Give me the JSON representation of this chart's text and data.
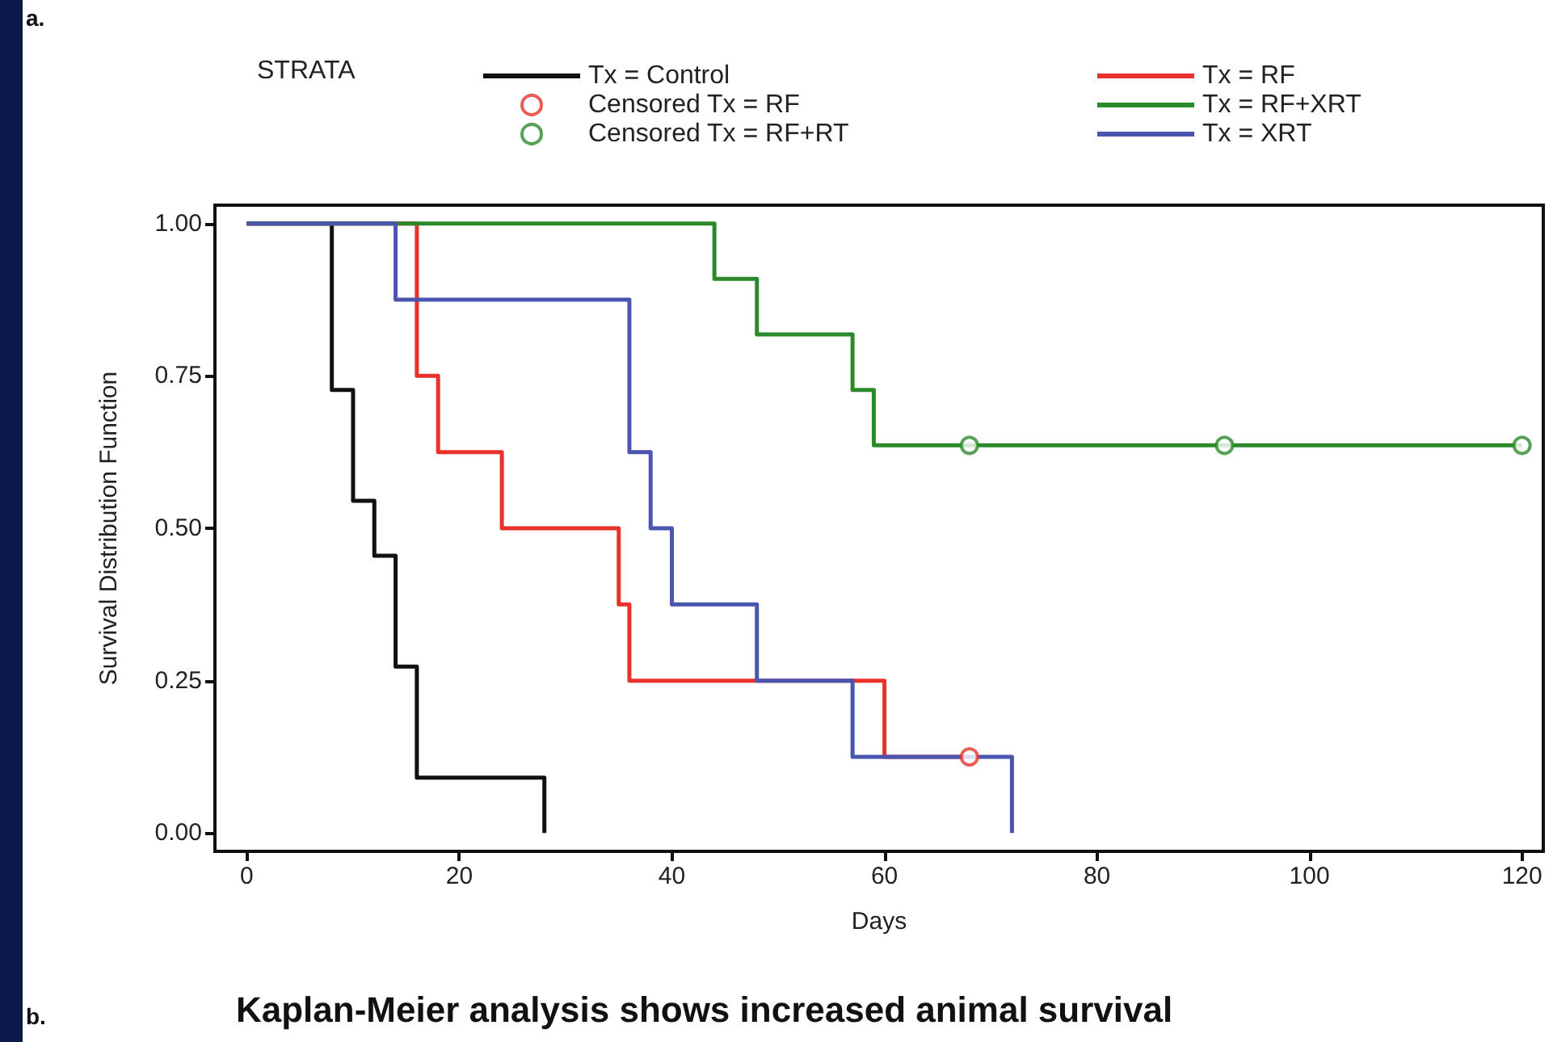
{
  "chart_data": {
    "type": "step",
    "xlabel": "Days",
    "ylabel": "Survival Distribution Function",
    "legend_title": "STRATA",
    "legend": "top",
    "grid": false,
    "annotations": [
      "a.",
      "b.",
      "Kaplan-Meier analysis shows increased animal survival"
    ],
    "xlim": [
      -3,
      122
    ],
    "xticks": [
      0,
      20,
      40,
      60,
      80,
      100,
      120
    ],
    "ylim": [
      -0.03,
      1.03
    ],
    "yticks": [
      {
        "value": 0,
        "label": "0.00"
      },
      {
        "value": 0.25,
        "label": "0.25"
      },
      {
        "value": 0.5,
        "label": "0.50"
      },
      {
        "value": 0.75,
        "label": "0.75"
      },
      {
        "value": 1,
        "label": "1.00"
      }
    ],
    "series": [
      {
        "name": "Tx = Control",
        "color": "#111111",
        "x": [
          0,
          8,
          10,
          12,
          14,
          16,
          28
        ],
        "values": [
          1,
          0.727,
          0.545,
          0.455,
          0.273,
          0.091,
          0
        ]
      },
      {
        "name": "Tx = RF",
        "color": "#e8322b",
        "x": [
          0,
          16,
          18,
          24,
          35,
          36,
          60,
          68
        ],
        "values": [
          1,
          0.75,
          0.625,
          0.5,
          0.375,
          0.25,
          0.125,
          0.125
        ]
      },
      {
        "name": "Censored Tx = RF",
        "type": "scatter",
        "marker": "circle",
        "color": "#e8322b",
        "x": [
          68
        ],
        "values": [
          0.125
        ]
      },
      {
        "name": "Tx = RF+XRT",
        "color": "#2a8a2a",
        "x": [
          0,
          44,
          48,
          57,
          59,
          120
        ],
        "values": [
          1,
          0.909,
          0.818,
          0.727,
          0.636,
          0.636
        ]
      },
      {
        "name": "Censored Tx = RF+RT",
        "type": "scatter",
        "marker": "circle",
        "color": "#2a8a2a",
        "x": [
          68,
          92,
          120
        ],
        "values": [
          0.636,
          0.636,
          0.636
        ]
      },
      {
        "name": "Tx = XRT",
        "color": "#4a55b0",
        "x": [
          0,
          14,
          36,
          38,
          40,
          48,
          57,
          72
        ],
        "values": [
          1,
          0.875,
          0.625,
          0.5,
          0.375,
          0.25,
          0.125,
          0
        ]
      }
    ]
  }
}
